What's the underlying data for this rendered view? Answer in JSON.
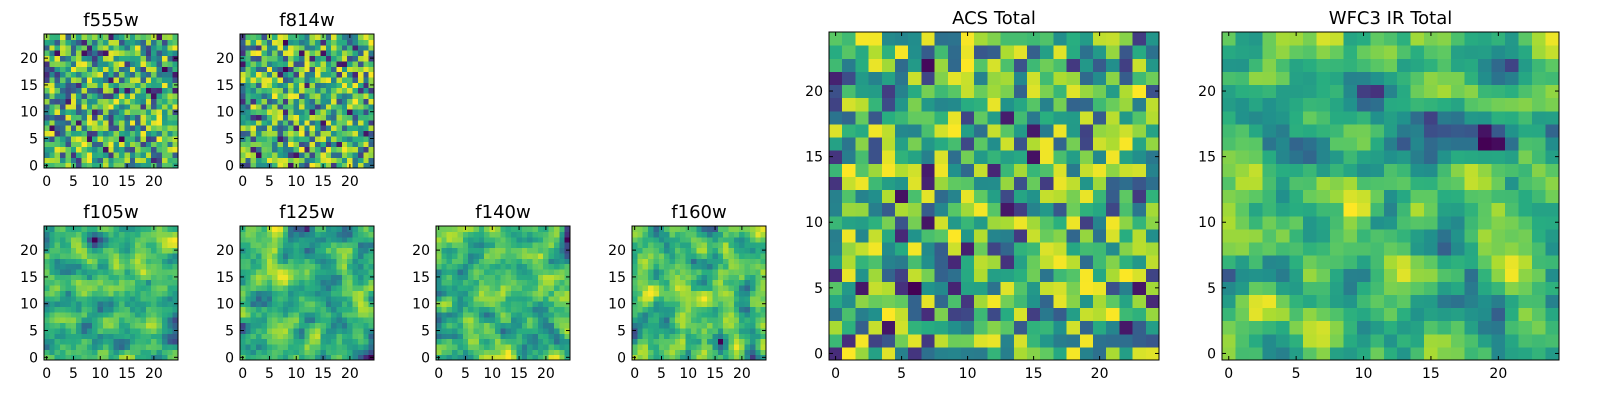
{
  "chart_data": [
    {
      "type": "heatmap",
      "title": "f555w",
      "grid": 25,
      "seed": 11,
      "smooth": 0,
      "colormap": "viridis",
      "xlim": [
        -0.5,
        24.5
      ],
      "ylim": [
        -0.5,
        24.5
      ],
      "xticks": [
        0,
        5,
        10,
        15,
        20
      ],
      "yticks": [
        0,
        5,
        10,
        15,
        20
      ]
    },
    {
      "type": "heatmap",
      "title": "f814w",
      "grid": 25,
      "seed": 23,
      "smooth": 0,
      "colormap": "viridis",
      "xlim": [
        -0.5,
        24.5
      ],
      "ylim": [
        -0.5,
        24.5
      ],
      "xticks": [
        0,
        5,
        10,
        15,
        20
      ],
      "yticks": [
        0,
        5,
        10,
        15,
        20
      ]
    },
    {
      "type": "heatmap",
      "title": "f105w",
      "grid": 25,
      "seed": 37,
      "smooth": 1,
      "colormap": "viridis",
      "xlim": [
        -0.5,
        24.5
      ],
      "ylim": [
        -0.5,
        24.5
      ],
      "xticks": [
        0,
        5,
        10,
        15,
        20
      ],
      "yticks": [
        0,
        5,
        10,
        15,
        20
      ]
    },
    {
      "type": "heatmap",
      "title": "f125w",
      "grid": 25,
      "seed": 41,
      "smooth": 1,
      "colormap": "viridis",
      "xlim": [
        -0.5,
        24.5
      ],
      "ylim": [
        -0.5,
        24.5
      ],
      "xticks": [
        0,
        5,
        10,
        15,
        20
      ],
      "yticks": [
        0,
        5,
        10,
        15,
        20
      ]
    },
    {
      "type": "heatmap",
      "title": "f140w",
      "grid": 25,
      "seed": 53,
      "smooth": 1,
      "colormap": "viridis",
      "xlim": [
        -0.5,
        24.5
      ],
      "ylim": [
        -0.5,
        24.5
      ],
      "xticks": [
        0,
        5,
        10,
        15,
        20
      ],
      "yticks": [
        0,
        5,
        10,
        15,
        20
      ]
    },
    {
      "type": "heatmap",
      "title": "f160w",
      "grid": 25,
      "seed": 67,
      "smooth": 1,
      "colormap": "viridis",
      "xlim": [
        -0.5,
        24.5
      ],
      "ylim": [
        -0.5,
        24.5
      ],
      "xticks": [
        0,
        5,
        10,
        15,
        20
      ],
      "yticks": [
        0,
        5,
        10,
        15,
        20
      ]
    },
    {
      "type": "heatmap",
      "title": "ACS Total",
      "grid": 25,
      "seed": 79,
      "smooth": 0,
      "colormap": "viridis",
      "xlim": [
        -0.5,
        24.5
      ],
      "ylim": [
        -0.5,
        24.5
      ],
      "xticks": [
        0,
        5,
        10,
        15,
        20
      ],
      "yticks": [
        0,
        5,
        10,
        15,
        20
      ]
    },
    {
      "type": "heatmap",
      "title": "WFC3 IR Total",
      "grid": 25,
      "seed": 97,
      "smooth": 1,
      "colormap": "viridis",
      "xlim": [
        -0.5,
        24.5
      ],
      "ylim": [
        -0.5,
        24.5
      ],
      "xticks": [
        0,
        5,
        10,
        15,
        20
      ],
      "yticks": [
        0,
        5,
        10,
        15,
        20
      ]
    }
  ]
}
